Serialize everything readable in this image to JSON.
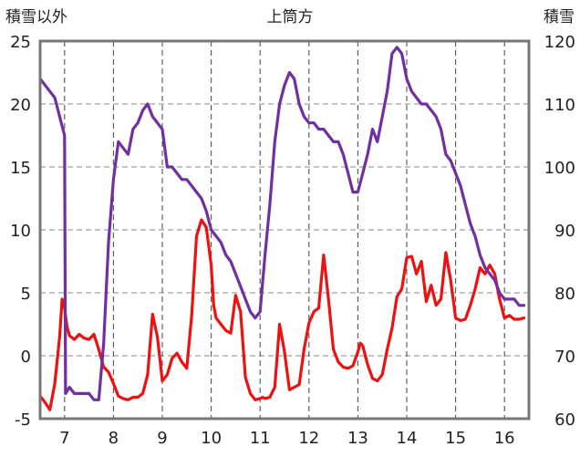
{
  "chart_data": {
    "type": "line",
    "title": "上筒方",
    "ylabel_left": "積雪以外",
    "ylabel_right": "積雪",
    "ylim_left": [
      -5,
      25
    ],
    "ylim_right": [
      60,
      120
    ],
    "yticks_left": [
      "-5",
      "0",
      "5",
      "10",
      "15",
      "20",
      "25"
    ],
    "yticks_right": [
      "60",
      "70",
      "80",
      "90",
      "100",
      "110",
      "120"
    ],
    "xlim": [
      6.5,
      16.5
    ],
    "xticks": [
      "7",
      "8",
      "9",
      "10",
      "11",
      "12",
      "13",
      "14",
      "15",
      "16"
    ],
    "grid": true,
    "series": [
      {
        "axis": "left",
        "color": "#ee1111",
        "x": [
          6.5,
          6.6,
          6.7,
          6.8,
          6.9,
          6.95,
          7.0,
          7.05,
          7.1,
          7.2,
          7.3,
          7.4,
          7.5,
          7.6,
          7.7,
          7.8,
          7.9,
          8.0,
          8.1,
          8.2,
          8.3,
          8.4,
          8.5,
          8.6,
          8.7,
          8.8,
          8.9,
          9.0,
          9.1,
          9.2,
          9.3,
          9.4,
          9.5,
          9.6,
          9.7,
          9.8,
          9.9,
          10.0,
          10.05,
          10.1,
          10.2,
          10.3,
          10.4,
          10.5,
          10.6,
          10.7,
          10.8,
          10.9,
          11.0,
          11.05,
          11.1,
          11.2,
          11.3,
          11.4,
          11.5,
          11.6,
          11.7,
          11.8,
          11.9,
          12.0,
          12.1,
          12.2,
          12.3,
          12.4,
          12.5,
          12.6,
          12.7,
          12.8,
          12.9,
          13.0,
          13.05,
          13.1,
          13.2,
          13.3,
          13.4,
          13.5,
          13.6,
          13.7,
          13.8,
          13.9,
          14.0,
          14.1,
          14.2,
          14.3,
          14.4,
          14.5,
          14.6,
          14.7,
          14.8,
          14.9,
          15.0,
          15.1,
          15.2,
          15.3,
          15.4,
          15.5,
          15.6,
          15.7,
          15.8,
          15.9,
          16.0,
          16.1,
          16.2,
          16.3,
          16.4
        ],
        "values": [
          -3.2,
          -3.7,
          -4.3,
          -2.2,
          1.5,
          4.5,
          3.8,
          2.3,
          1.6,
          1.3,
          1.7,
          1.4,
          1.3,
          1.7,
          0.5,
          -0.9,
          -1.3,
          -2.2,
          -3.2,
          -3.4,
          -3.5,
          -3.3,
          -3.3,
          -3.0,
          -1.5,
          3.3,
          1.5,
          -2.0,
          -1.5,
          -0.2,
          0.2,
          -0.5,
          -1.0,
          3.2,
          9.5,
          10.8,
          10.2,
          7.2,
          4.0,
          3.0,
          2.5,
          2.0,
          1.8,
          4.8,
          3.5,
          -1.7,
          -3.0,
          -3.5,
          -3.4,
          -3.3,
          -3.4,
          -3.3,
          -2.5,
          2.5,
          0.3,
          -2.7,
          -2.5,
          -2.3,
          0.5,
          2.6,
          3.5,
          3.8,
          8.0,
          4.5,
          0.5,
          -0.5,
          -0.9,
          -1.0,
          -0.8,
          0.3,
          1.0,
          0.8,
          -0.7,
          -1.8,
          -2.0,
          -1.5,
          0.5,
          2.2,
          4.7,
          5.3,
          7.8,
          7.9,
          6.5,
          7.5,
          4.3,
          5.6,
          4.0,
          4.5,
          8.2,
          6.0,
          3.0,
          2.8,
          2.9,
          4.0,
          5.3,
          7.0,
          6.5,
          7.2,
          6.5,
          4.5,
          3.0,
          3.2,
          2.9,
          2.9,
          3.0
        ]
      },
      {
        "axis": "right",
        "color": "#7030a0",
        "x": [
          6.5,
          6.6,
          6.7,
          6.8,
          6.9,
          7.0,
          7.02,
          7.1,
          7.2,
          7.3,
          7.4,
          7.5,
          7.6,
          7.7,
          7.8,
          7.9,
          8.0,
          8.1,
          8.2,
          8.3,
          8.4,
          8.5,
          8.6,
          8.7,
          8.8,
          8.9,
          9.0,
          9.1,
          9.2,
          9.3,
          9.4,
          9.5,
          9.6,
          9.7,
          9.8,
          9.9,
          10.0,
          10.1,
          10.2,
          10.3,
          10.4,
          10.5,
          10.6,
          10.7,
          10.8,
          10.9,
          11.0,
          11.1,
          11.2,
          11.3,
          11.4,
          11.5,
          11.6,
          11.7,
          11.8,
          11.9,
          12.0,
          12.1,
          12.2,
          12.3,
          12.4,
          12.5,
          12.6,
          12.7,
          12.8,
          12.9,
          13.0,
          13.1,
          13.2,
          13.3,
          13.4,
          13.5,
          13.6,
          13.7,
          13.8,
          13.9,
          14.0,
          14.1,
          14.2,
          14.3,
          14.4,
          14.5,
          14.6,
          14.7,
          14.8,
          14.9,
          15.0,
          15.1,
          15.2,
          15.3,
          15.4,
          15.5,
          15.6,
          15.7,
          15.8,
          15.9,
          16.0,
          16.1,
          16.2,
          16.3,
          16.4
        ],
        "values": [
          114,
          113,
          112,
          111,
          108,
          105,
          64,
          65,
          64,
          64,
          64,
          64,
          63,
          63,
          72,
          88,
          98,
          104,
          103,
          102,
          106,
          107,
          109,
          110,
          108,
          107,
          106,
          100,
          100,
          99,
          98,
          98,
          97,
          96,
          95,
          93,
          90,
          89,
          88,
          86,
          85,
          83,
          81,
          79,
          77,
          76,
          77,
          86,
          94,
          104,
          110,
          113,
          115,
          114,
          110,
          108,
          107,
          107,
          106,
          106,
          105,
          104,
          104,
          102,
          99,
          96,
          96,
          99,
          102,
          106,
          104,
          108,
          112,
          118,
          119,
          118,
          114,
          112,
          111,
          110,
          110,
          109,
          108,
          106,
          102,
          101,
          99,
          97,
          94,
          91,
          89,
          86,
          84,
          83,
          82,
          80,
          79,
          79,
          79,
          78,
          78
        ]
      }
    ]
  }
}
